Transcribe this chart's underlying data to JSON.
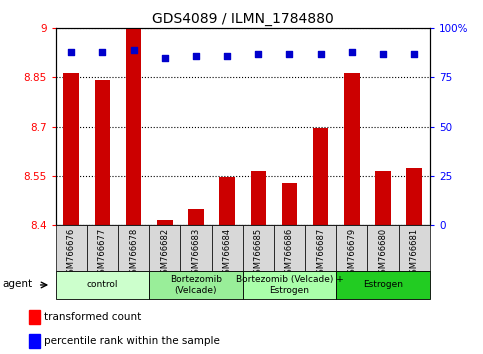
{
  "title": "GDS4089 / ILMN_1784880",
  "samples": [
    "GSM766676",
    "GSM766677",
    "GSM766678",
    "GSM766682",
    "GSM766683",
    "GSM766684",
    "GSM766685",
    "GSM766686",
    "GSM766687",
    "GSM766679",
    "GSM766680",
    "GSM766681"
  ],
  "bar_values": [
    8.865,
    8.843,
    8.997,
    8.415,
    8.448,
    8.545,
    8.563,
    8.527,
    8.697,
    8.865,
    8.563,
    8.572
  ],
  "percentile_values": [
    88,
    88,
    89,
    85,
    86,
    86,
    87,
    87,
    87,
    88,
    87,
    87
  ],
  "ymin": 8.4,
  "ymax": 9.0,
  "yticks": [
    8.4,
    8.55,
    8.7,
    8.85,
    9.0
  ],
  "ytick_labels": [
    "8.4",
    "8.55",
    "8.7",
    "8.85",
    "9"
  ],
  "right_yticks": [
    0,
    25,
    50,
    75,
    100
  ],
  "right_ytick_labels": [
    "0",
    "25",
    "50",
    "75",
    "100%"
  ],
  "bar_color": "#cc0000",
  "dot_color": "#0000cc",
  "group_spans": [
    {
      "start": 0,
      "end": 2,
      "label": "control",
      "color": "#ccffcc"
    },
    {
      "start": 3,
      "end": 5,
      "label": "Bortezomib\n(Velcade)",
      "color": "#99ee99"
    },
    {
      "start": 6,
      "end": 8,
      "label": "Bortezomib (Velcade) +\nEstrogen",
      "color": "#aaffaa"
    },
    {
      "start": 9,
      "end": 11,
      "label": "Estrogen",
      "color": "#22cc22"
    }
  ],
  "legend_bar_label": "transformed count",
  "legend_dot_label": "percentile rank within the sample",
  "agent_label": "agent",
  "bar_width": 0.5,
  "background_color": "#ffffff"
}
